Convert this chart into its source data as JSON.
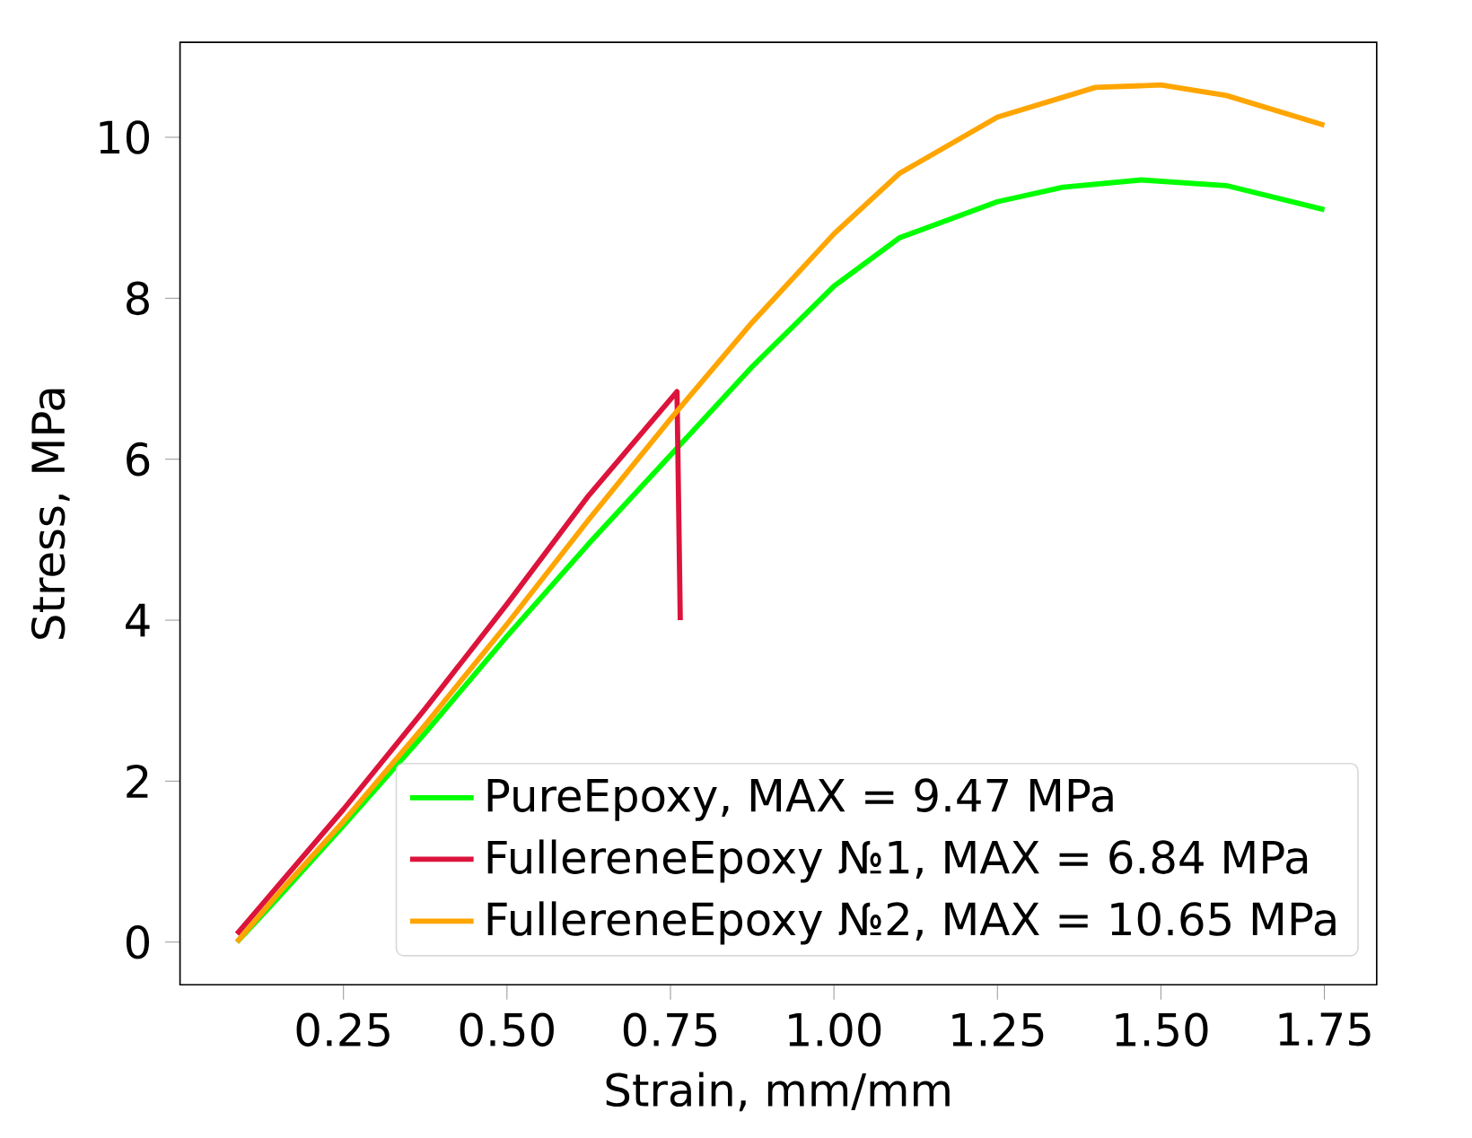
{
  "chart_data": {
    "type": "line",
    "xlabel": "Strain, mm/mm",
    "ylabel": "Stress, MPa",
    "xlim": [
      0.0,
      1.83
    ],
    "ylim": [
      -0.53,
      11.18
    ],
    "xticks": [
      {
        "value": 0.25,
        "label": "0.25"
      },
      {
        "value": 0.5,
        "label": "0.50"
      },
      {
        "value": 0.75,
        "label": "0.75"
      },
      {
        "value": 1.0,
        "label": "1.00"
      },
      {
        "value": 1.25,
        "label": "1.25"
      },
      {
        "value": 1.5,
        "label": "1.50"
      },
      {
        "value": 1.75,
        "label": "1.75"
      }
    ],
    "yticks": [
      0,
      2,
      4,
      6,
      8,
      10
    ],
    "legend": "bottom right",
    "grid": false,
    "series": [
      {
        "name": "PureEpoxy, MAX = 9.47 MPa",
        "color": "#00ff00",
        "x": [
          0.087,
          0.15,
          0.25,
          0.375,
          0.5,
          0.625,
          0.75,
          0.875,
          1.0,
          1.1,
          1.25,
          1.35,
          1.47,
          1.6,
          1.75
        ],
        "values": [
          0,
          0.55,
          1.45,
          2.6,
          3.8,
          4.95,
          6.05,
          7.15,
          8.15,
          8.75,
          9.2,
          9.38,
          9.47,
          9.4,
          9.1
        ]
      },
      {
        "name": "FullereneEpoxy №1, MAX = 6.84 MPa",
        "color": "#dc143c",
        "x": [
          0.087,
          0.15,
          0.25,
          0.375,
          0.5,
          0.625,
          0.76,
          0.765
        ],
        "values": [
          0.1,
          0.7,
          1.65,
          2.9,
          4.2,
          5.55,
          6.84,
          4.0
        ]
      },
      {
        "name": "FullereneEpoxy №2, MAX = 10.65 MPa",
        "color": "#ffa500",
        "x": [
          0.087,
          0.15,
          0.25,
          0.375,
          0.5,
          0.625,
          0.75,
          0.875,
          1.0,
          1.1,
          1.25,
          1.4,
          1.5,
          1.6,
          1.75
        ],
        "values": [
          0,
          0.6,
          1.5,
          2.7,
          3.95,
          5.25,
          6.5,
          7.7,
          8.8,
          9.55,
          10.25,
          10.62,
          10.65,
          10.52,
          10.15
        ]
      }
    ]
  }
}
